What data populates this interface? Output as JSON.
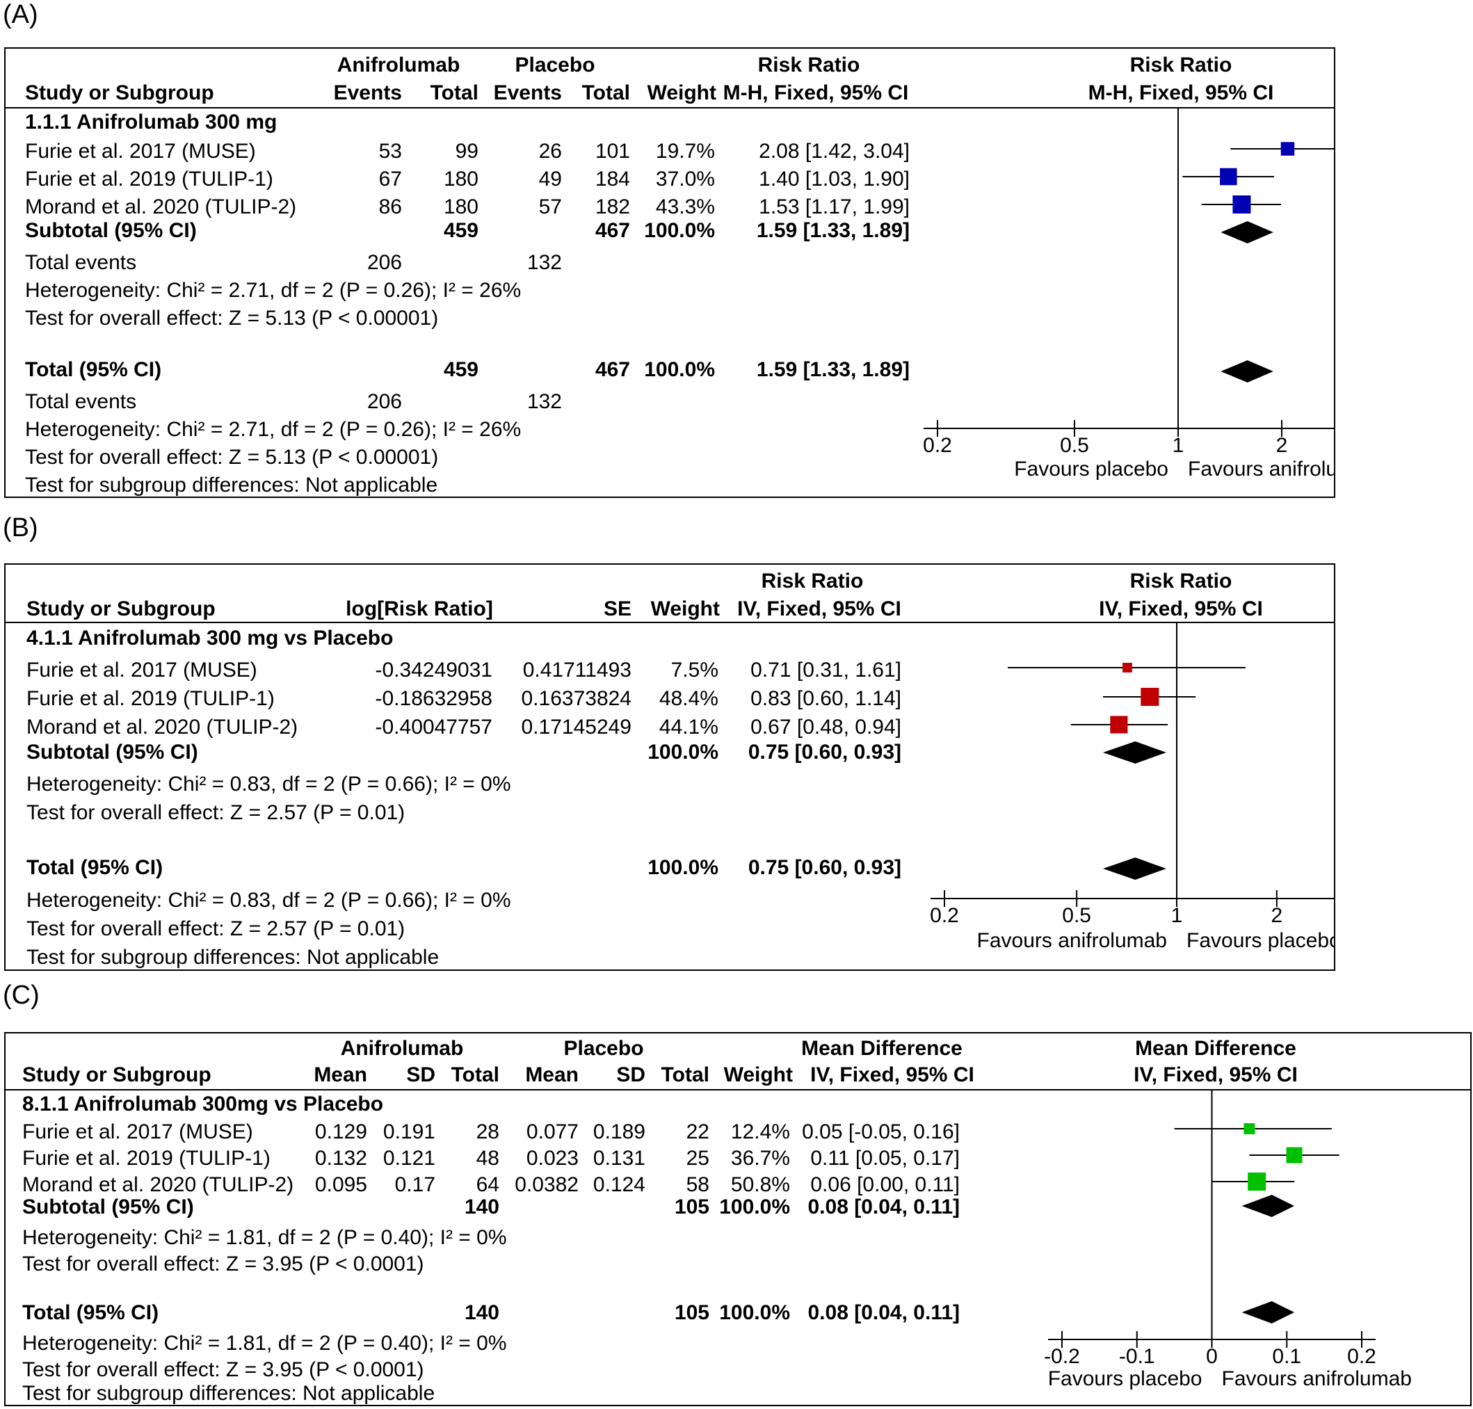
{
  "panels": [
    {
      "label": "(A)",
      "color": "#0000b4",
      "header": {
        "group1": "Anifrolumab",
        "group2": "Placebo",
        "effect_top": "Risk Ratio",
        "plot_top": "Risk Ratio",
        "study": "Study or Subgroup",
        "g1_events": "Events",
        "g1_total": "Total",
        "g2_events": "Events",
        "g2_total": "Total",
        "weight": "Weight",
        "effect_method": "M-H, Fixed, 95% CI",
        "plot_method": "M-H, Fixed, 95% CI"
      },
      "subgroup": "1.1.1 Anifrolumab 300 mg",
      "studies": [
        {
          "name": "Furie et al. 2017 (MUSE)",
          "c1": "53",
          "c2": "99",
          "c3": "26",
          "c4": "101",
          "weight": "19.7%",
          "ci": "2.08 [1.42, 3.04]"
        },
        {
          "name": "Furie et al. 2019 (TULIP-1)",
          "c1": "67",
          "c2": "180",
          "c3": "49",
          "c4": "184",
          "weight": "37.0%",
          "ci": "1.40 [1.03, 1.90]"
        },
        {
          "name": "Morand et al. 2020 (TULIP-2)",
          "c1": "86",
          "c2": "180",
          "c3": "57",
          "c4": "182",
          "weight": "43.3%",
          "ci": "1.53 [1.17, 1.99]"
        }
      ],
      "subtotal": {
        "label": "Subtotal (95% CI)",
        "t1": "459",
        "t2": "467",
        "weight": "100.0%",
        "ci": "1.59 [1.33, 1.89]"
      },
      "subtotal_events": {
        "label": "Total events",
        "e1": "206",
        "e2": "132"
      },
      "sub_het": "Heterogeneity: Chi² = 2.71, df = 2 (P = 0.26); I² = 26%",
      "sub_test": "Test for overall effect: Z = 5.13 (P < 0.00001)",
      "total": {
        "label": "Total (95% CI)",
        "t1": "459",
        "t2": "467",
        "weight": "100.0%",
        "ci": "1.59 [1.33, 1.89]"
      },
      "total_events": {
        "label": "Total events",
        "e1": "206",
        "e2": "132"
      },
      "tot_het": "Heterogeneity: Chi² = 2.71, df = 2 (P = 0.26); I² = 26%",
      "tot_test": "Test for overall effect: Z = 5.13 (P < 0.00001)",
      "subgroup_diff": "Test for subgroup differences: Not applicable",
      "favours_left": "Favours placebo",
      "favours_right": "Favours anifrolumab"
    },
    {
      "label": "(B)",
      "color": "#c00000",
      "header": {
        "effect_top": "Risk Ratio",
        "plot_top": "Risk Ratio",
        "study": "Study or Subgroup",
        "log": "log[Risk Ratio]",
        "se": "SE",
        "weight": "Weight",
        "effect_method": "IV, Fixed, 95% CI",
        "plot_method": "IV, Fixed, 95% CI"
      },
      "subgroup": "4.1.1 Anifrolumab 300 mg vs Placebo",
      "studies": [
        {
          "name": "Furie et al. 2017 (MUSE)",
          "c1": "-0.34249031",
          "c2": "0.41711493",
          "weight": "7.5%",
          "ci": "0.71 [0.31, 1.61]"
        },
        {
          "name": "Furie et al. 2019 (TULIP-1)",
          "c1": "-0.18632958",
          "c2": "0.16373824",
          "weight": "48.4%",
          "ci": "0.83 [0.60, 1.14]"
        },
        {
          "name": "Morand et al. 2020 (TULIP-2)",
          "c1": "-0.40047757",
          "c2": "0.17145249",
          "weight": "44.1%",
          "ci": "0.67 [0.48, 0.94]"
        }
      ],
      "subtotal": {
        "label": "Subtotal (95% CI)",
        "weight": "100.0%",
        "ci": "0.75 [0.60, 0.93]"
      },
      "sub_het": "Heterogeneity: Chi² = 0.83, df = 2 (P = 0.66); I² = 0%",
      "sub_test": "Test for overall effect: Z = 2.57 (P = 0.01)",
      "total": {
        "label": "Total (95% CI)",
        "weight": "100.0%",
        "ci": "0.75 [0.60, 0.93]"
      },
      "tot_het": "Heterogeneity: Chi² = 0.83, df = 2 (P = 0.66); I² = 0%",
      "tot_test": "Test for overall effect: Z = 2.57 (P = 0.01)",
      "subgroup_diff": "Test for subgroup differences: Not applicable",
      "favours_left": "Favours anifrolumab",
      "favours_right": "Favours placebo"
    },
    {
      "label": "(C)",
      "color": "#00c000",
      "header": {
        "group1": "Anifrolumab",
        "group2": "Placebo",
        "effect_top": "Mean Difference",
        "plot_top": "Mean Difference",
        "study": "Study or Subgroup",
        "mean1": "Mean",
        "sd1": "SD",
        "total1": "Total",
        "mean2": "Mean",
        "sd2": "SD",
        "total2": "Total",
        "weight": "Weight",
        "effect_method": "IV, Fixed, 95% CI",
        "plot_method": "IV, Fixed, 95% CI"
      },
      "subgroup": "8.1.1 Anifrolumab 300mg vs Placebo",
      "studies": [
        {
          "name": "Furie et al. 2017 (MUSE)",
          "c1": "0.129",
          "c2": "0.191",
          "c3": "28",
          "c4": "0.077",
          "c5": "0.189",
          "c6": "22",
          "weight": "12.4%",
          "ci": "0.05 [-0.05, 0.16]"
        },
        {
          "name": "Furie et al. 2019 (TULIP-1)",
          "c1": "0.132",
          "c2": "0.121",
          "c3": "48",
          "c4": "0.023",
          "c5": "0.131",
          "c6": "25",
          "weight": "36.7%",
          "ci": "0.11 [0.05, 0.17]"
        },
        {
          "name": "Morand et al. 2020 (TULIP-2)",
          "c1": "0.095",
          "c2": "0.17",
          "c3": "64",
          "c4": "0.0382",
          "c5": "0.124",
          "c6": "58",
          "weight": "50.8%",
          "ci": "0.06 [0.00, 0.11]"
        }
      ],
      "subtotal": {
        "label": "Subtotal (95% CI)",
        "t1": "140",
        "t2": "105",
        "weight": "100.0%",
        "ci": "0.08 [0.04, 0.11]"
      },
      "sub_het": "Heterogeneity: Chi² = 1.81, df = 2 (P = 0.40); I² = 0%",
      "sub_test": "Test for overall effect: Z = 3.95 (P < 0.0001)",
      "total": {
        "label": "Total (95% CI)",
        "t1": "140",
        "t2": "105",
        "weight": "100.0%",
        "ci": "0.08 [0.04, 0.11]"
      },
      "tot_het": "Heterogeneity: Chi² = 1.81, df = 2 (P = 0.40); I² = 0%",
      "tot_test": "Test for overall effect: Z = 3.95 (P < 0.0001)",
      "subgroup_diff": "Test for subgroup differences: Not applicable",
      "favours_left": "Favours placebo",
      "favours_right": "Favours anifrolumab"
    }
  ],
  "chart_data": [
    {
      "type": "scatter",
      "scale": "log",
      "xlim": [
        0.2,
        5
      ],
      "ticks": [
        "0.2",
        "0.5",
        "1",
        "2",
        "5"
      ],
      "null_value": 1,
      "studies": [
        {
          "est": 2.08,
          "lo": 1.42,
          "hi": 3.04,
          "weight": 19.7
        },
        {
          "est": 1.4,
          "lo": 1.03,
          "hi": 1.9,
          "weight": 37.0
        },
        {
          "est": 1.53,
          "lo": 1.17,
          "hi": 1.99,
          "weight": 43.3
        }
      ],
      "pooled": [
        {
          "est": 1.59,
          "lo": 1.33,
          "hi": 1.89
        },
        {
          "est": 1.59,
          "lo": 1.33,
          "hi": 1.89
        }
      ]
    },
    {
      "type": "scatter",
      "scale": "log",
      "xlim": [
        0.2,
        5
      ],
      "ticks": [
        "0.2",
        "0.5",
        "1",
        "2",
        "5"
      ],
      "null_value": 1,
      "studies": [
        {
          "est": 0.71,
          "lo": 0.31,
          "hi": 1.61,
          "weight": 7.5
        },
        {
          "est": 0.83,
          "lo": 0.6,
          "hi": 1.14,
          "weight": 48.4
        },
        {
          "est": 0.67,
          "lo": 0.48,
          "hi": 0.94,
          "weight": 44.1
        }
      ],
      "pooled": [
        {
          "est": 0.75,
          "lo": 0.6,
          "hi": 0.93
        },
        {
          "est": 0.75,
          "lo": 0.6,
          "hi": 0.93
        }
      ]
    },
    {
      "type": "scatter",
      "scale": "linear",
      "xlim": [
        -0.2,
        0.2
      ],
      "ticks": [
        "-0.2",
        "-0.1",
        "0",
        "0.1",
        "0.2"
      ],
      "null_value": 0,
      "studies": [
        {
          "est": 0.05,
          "lo": -0.05,
          "hi": 0.16,
          "weight": 12.4
        },
        {
          "est": 0.11,
          "lo": 0.05,
          "hi": 0.17,
          "weight": 36.7
        },
        {
          "est": 0.06,
          "lo": 0.0,
          "hi": 0.11,
          "weight": 50.8
        }
      ],
      "pooled": [
        {
          "est": 0.08,
          "lo": 0.04,
          "hi": 0.11
        },
        {
          "est": 0.08,
          "lo": 0.04,
          "hi": 0.11
        }
      ]
    }
  ]
}
